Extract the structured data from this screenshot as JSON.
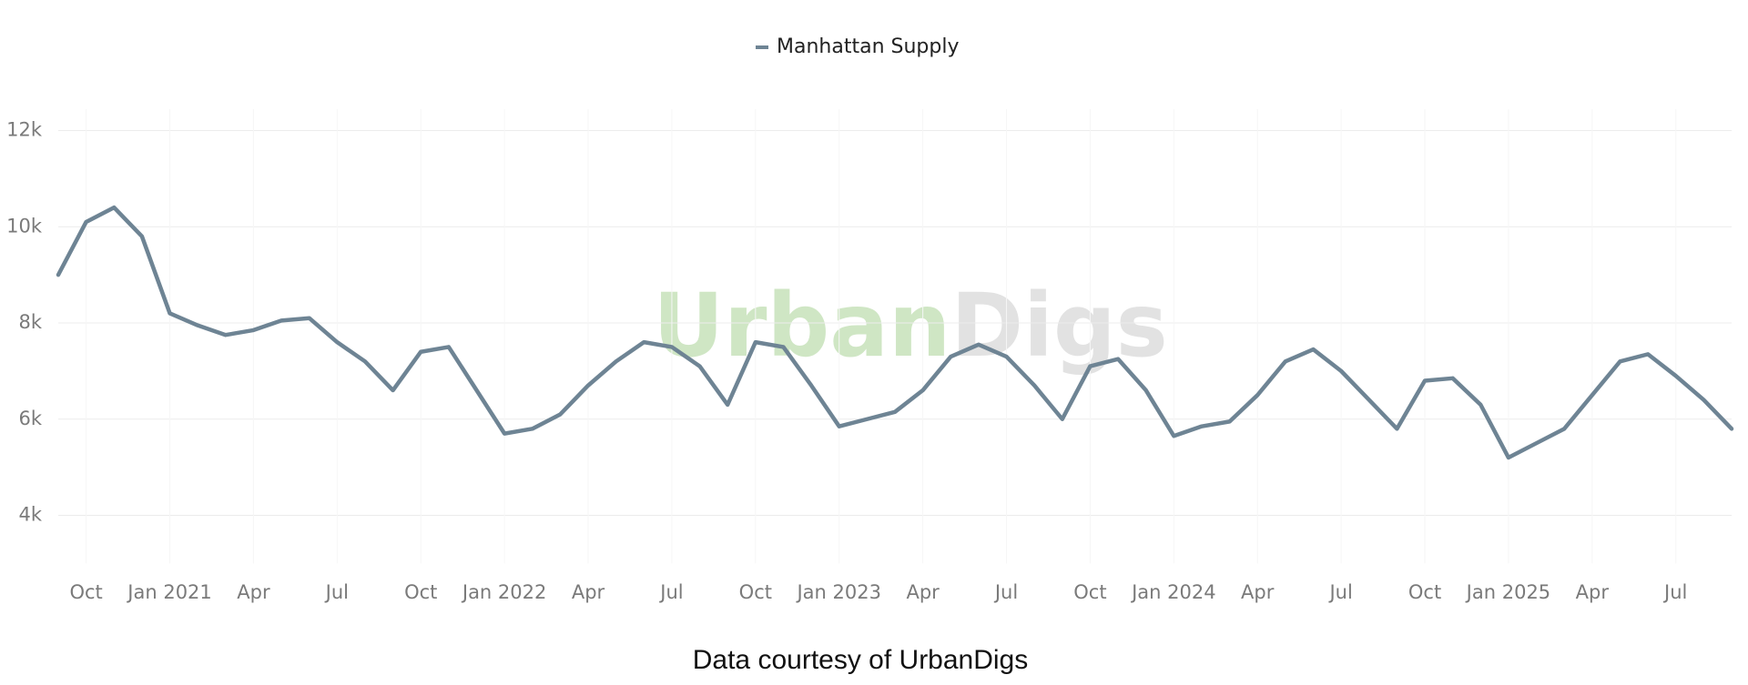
{
  "chart_data": {
    "type": "line",
    "watermark": [
      "Urban",
      "Digs"
    ],
    "caption": "Data courtesy of UrbanDigs",
    "x": [
      "2020-09",
      "2020-10",
      "2020-11",
      "2020-12",
      "2021-01",
      "2021-02",
      "2021-03",
      "2021-04",
      "2021-05",
      "2021-06",
      "2021-07",
      "2021-08",
      "2021-09",
      "2021-10",
      "2021-11",
      "2021-12",
      "2022-01",
      "2022-02",
      "2022-03",
      "2022-04",
      "2022-05",
      "2022-06",
      "2022-07",
      "2022-08",
      "2022-09",
      "2022-10",
      "2022-11",
      "2022-12",
      "2023-01",
      "2023-02",
      "2023-03",
      "2023-04",
      "2023-05",
      "2023-06",
      "2023-07",
      "2023-08",
      "2023-09",
      "2023-10",
      "2023-11",
      "2023-12",
      "2024-01",
      "2024-02",
      "2024-03",
      "2024-04",
      "2024-05",
      "2024-06",
      "2024-07",
      "2024-08",
      "2024-09",
      "2024-10",
      "2024-11",
      "2024-12",
      "2025-01",
      "2025-02",
      "2025-03",
      "2025-04",
      "2025-05",
      "2025-06",
      "2025-07",
      "2025-08",
      "2025-09"
    ],
    "series": [
      {
        "name": "Manhattan Supply",
        "color": "#6e8494",
        "values": [
          9000,
          10100,
          10400,
          9800,
          8200,
          7950,
          7750,
          7850,
          8050,
          8100,
          7600,
          7200,
          6600,
          7400,
          7500,
          6600,
          5700,
          5800,
          6100,
          6700,
          7200,
          7600,
          7500,
          7100,
          6300,
          7600,
          7500,
          6700,
          5850,
          6000,
          6150,
          6600,
          7300,
          7550,
          7300,
          6700,
          6000,
          7100,
          7250,
          6600,
          5650,
          5850,
          5950,
          6500,
          7200,
          7450,
          7000,
          6400,
          5800,
          6800,
          6850,
          6300,
          5200,
          5500,
          5800,
          6500,
          7200,
          7350,
          6900,
          6400,
          5800
        ]
      }
    ],
    "xlim": [
      "2020-09",
      "2025-09"
    ],
    "xticks": [
      {
        "value": "2020-10",
        "label": "Oct"
      },
      {
        "value": "2021-01",
        "label": "Jan 2021"
      },
      {
        "value": "2021-04",
        "label": "Apr"
      },
      {
        "value": "2021-07",
        "label": "Jul"
      },
      {
        "value": "2021-10",
        "label": "Oct"
      },
      {
        "value": "2022-01",
        "label": "Jan 2022"
      },
      {
        "value": "2022-04",
        "label": "Apr"
      },
      {
        "value": "2022-07",
        "label": "Jul"
      },
      {
        "value": "2022-10",
        "label": "Oct"
      },
      {
        "value": "2023-01",
        "label": "Jan 2023"
      },
      {
        "value": "2023-04",
        "label": "Apr"
      },
      {
        "value": "2023-07",
        "label": "Jul"
      },
      {
        "value": "2023-10",
        "label": "Oct"
      },
      {
        "value": "2024-01",
        "label": "Jan 2024"
      },
      {
        "value": "2024-04",
        "label": "Apr"
      },
      {
        "value": "2024-07",
        "label": "Jul"
      },
      {
        "value": "2024-10",
        "label": "Oct"
      },
      {
        "value": "2025-01",
        "label": "Jan 2025"
      },
      {
        "value": "2025-04",
        "label": "Apr"
      },
      {
        "value": "2025-07",
        "label": "Jul"
      }
    ],
    "ylim": [
      3000,
      12000
    ],
    "yticks": [
      {
        "value": 4000,
        "label": "4k"
      },
      {
        "value": 6000,
        "label": "6k"
      },
      {
        "value": 8000,
        "label": "8k"
      },
      {
        "value": 10000,
        "label": "10k"
      },
      {
        "value": 12000,
        "label": "12k"
      }
    ],
    "grid": true,
    "legend": "top"
  }
}
